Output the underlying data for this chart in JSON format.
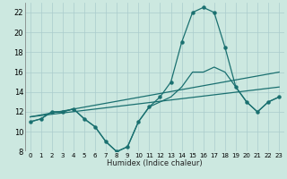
{
  "xlabel": "Humidex (Indice chaleur)",
  "xlim": [
    -0.5,
    23.5
  ],
  "ylim": [
    8,
    23
  ],
  "yticks": [
    8,
    10,
    12,
    14,
    16,
    18,
    20,
    22
  ],
  "xticks": [
    0,
    1,
    2,
    3,
    4,
    5,
    6,
    7,
    8,
    9,
    10,
    11,
    12,
    13,
    14,
    15,
    16,
    17,
    18,
    19,
    20,
    21,
    22,
    23
  ],
  "bg_color": "#cce8e0",
  "grid_color": "#aacccc",
  "line_color": "#1a7070",
  "lines": [
    {
      "x": [
        0,
        1,
        2,
        3,
        4,
        5,
        6,
        7,
        8,
        9,
        10,
        11,
        12,
        13,
        14,
        15,
        16,
        17,
        18,
        19,
        20,
        21,
        22,
        23
      ],
      "y": [
        11,
        11.3,
        12,
        12,
        12.3,
        11.3,
        10.5,
        9.0,
        8.0,
        8.5,
        11,
        12.5,
        13.5,
        15.0,
        19.0,
        22.0,
        22.5,
        22.0,
        18.5,
        14.5,
        13.0,
        12.0,
        13.0,
        13.5
      ],
      "marker": true
    },
    {
      "x": [
        0,
        1,
        2,
        3,
        4,
        5,
        6,
        7,
        8,
        9,
        10,
        11,
        12,
        13,
        14,
        15,
        16,
        17,
        18,
        19,
        20,
        21,
        22,
        23
      ],
      "y": [
        11,
        11.3,
        12,
        12,
        12.3,
        11.3,
        10.5,
        9.0,
        8.0,
        8.5,
        11,
        12.5,
        13.0,
        13.5,
        14.5,
        16.0,
        16.0,
        16.5,
        16.0,
        14.5,
        13.0,
        12.0,
        13.0,
        13.5
      ],
      "marker": false
    },
    {
      "x": [
        0,
        23
      ],
      "y": [
        11.5,
        16.0
      ],
      "marker": false
    },
    {
      "x": [
        0,
        23
      ],
      "y": [
        11.5,
        14.5
      ],
      "marker": false
    }
  ]
}
